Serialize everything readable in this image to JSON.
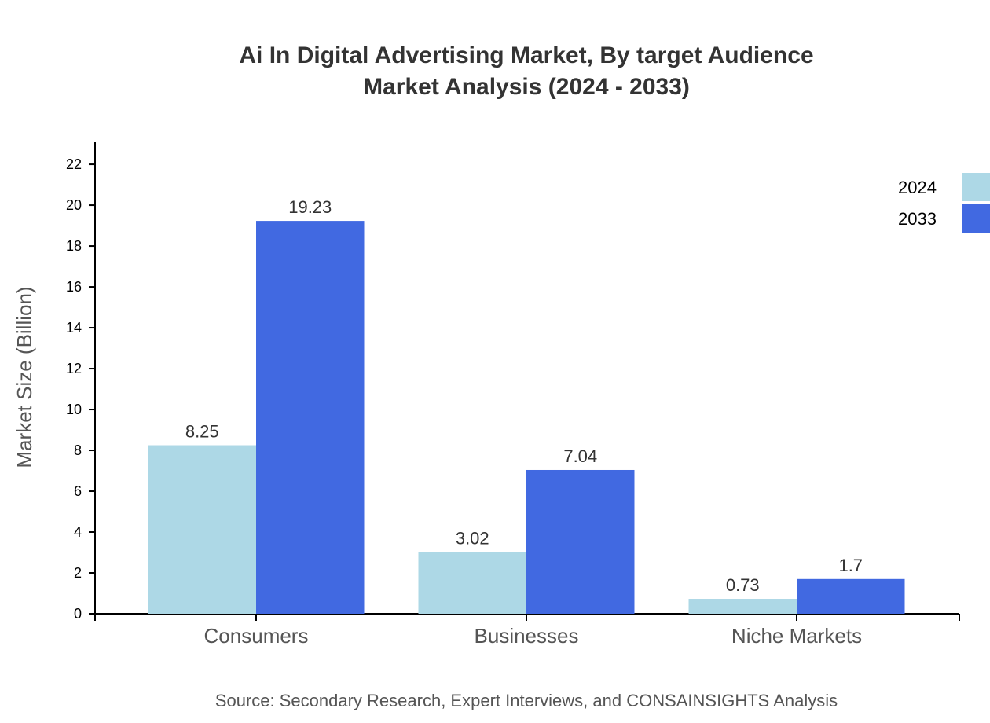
{
  "chart_data": {
    "type": "bar",
    "title": [
      "Ai In Digital Advertising Market, By target Audience",
      "Market Analysis (2024 - 2033)"
    ],
    "ylabel": "Market Size (Billion)",
    "xlabel": "",
    "categories": [
      "Consumers",
      "Businesses",
      "Niche Markets"
    ],
    "series": [
      {
        "name": "2024",
        "color": "#ADD8E6",
        "values": [
          8.25,
          3.02,
          0.73
        ]
      },
      {
        "name": "2033",
        "color": "#4169E1",
        "values": [
          19.23,
          7.04,
          1.7
        ]
      }
    ],
    "ylim": [
      0,
      23
    ],
    "yticks": [
      0,
      2,
      4,
      6,
      8,
      10,
      12,
      14,
      16,
      18,
      20,
      22
    ],
    "grid": false,
    "legend": "top-right",
    "source": "Source: Secondary Research, Expert Interviews, and CONSAINSIGHTS Analysis"
  }
}
